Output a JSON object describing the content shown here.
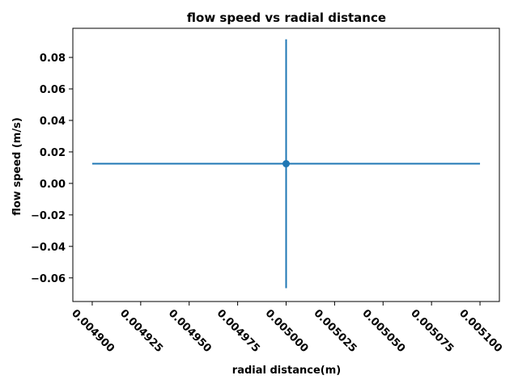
{
  "chart_data": {
    "type": "scatter",
    "title": "flow speed vs radial distance",
    "xlabel": "radial distance(m)",
    "ylabel": "flow speed (m/s)",
    "xlim": [
      0.00489,
      0.00511
    ],
    "ylim": [
      -0.075,
      0.0985
    ],
    "x_ticks": [
      0.0049,
      0.004925,
      0.00495,
      0.004975,
      0.005,
      0.005025,
      0.00505,
      0.005075,
      0.0051
    ],
    "x_tick_labels": [
      "0.004900",
      "0.004925",
      "0.004950",
      "0.004975",
      "0.005000",
      "0.005025",
      "0.005050",
      "0.005075",
      "0.005100"
    ],
    "y_ticks": [
      -0.06,
      -0.04,
      -0.02,
      0.0,
      0.02,
      0.04,
      0.06,
      0.08
    ],
    "y_tick_labels": [
      "−0.06",
      "−0.04",
      "−0.02",
      "0.00",
      "0.02",
      "0.04",
      "0.06",
      "0.08"
    ],
    "points": [
      {
        "x": 0.005,
        "y": 0.0125,
        "xerr": 0.0001,
        "yerr": 0.079
      }
    ],
    "grid": false,
    "color": "#1f77b4"
  }
}
